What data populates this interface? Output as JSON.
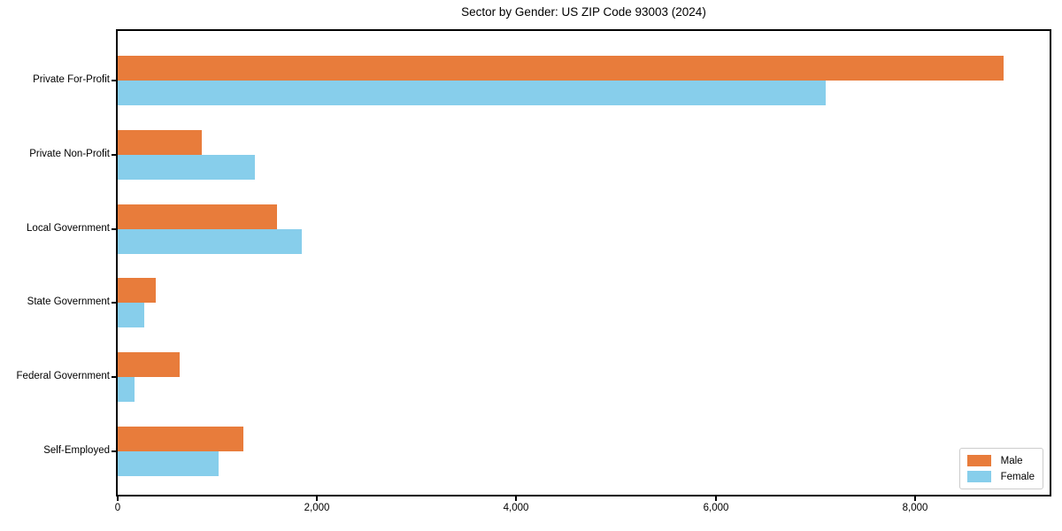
{
  "figure": {
    "background": "#ffffff",
    "spine_color": "#000000"
  },
  "chart_data": {
    "type": "bar",
    "orientation": "horizontal",
    "title": "Sector by Gender: US ZIP Code 93003 (2024)",
    "categories": [
      "Private For-Profit",
      "Private Non-Profit",
      "Local Government",
      "State Government",
      "Federal Government",
      "Self-Employed"
    ],
    "series": [
      {
        "name": "Male",
        "color": "#E87C3B",
        "values": [
          8890,
          840,
          1600,
          380,
          620,
          1260
        ]
      },
      {
        "name": "Female",
        "color": "#87CEEB",
        "values": [
          7100,
          1380,
          1850,
          270,
          170,
          1010
        ]
      }
    ],
    "xlabel": "",
    "ylabel": "",
    "xlim": [
      0,
      9350
    ],
    "x_ticks": [
      0,
      2000,
      4000,
      6000,
      8000
    ],
    "x_tick_labels": [
      "0",
      "2,000",
      "4,000",
      "6,000",
      "8,000"
    ],
    "grid": false,
    "legend": {
      "position": "lower right",
      "border_color": "#cccccc"
    }
  }
}
